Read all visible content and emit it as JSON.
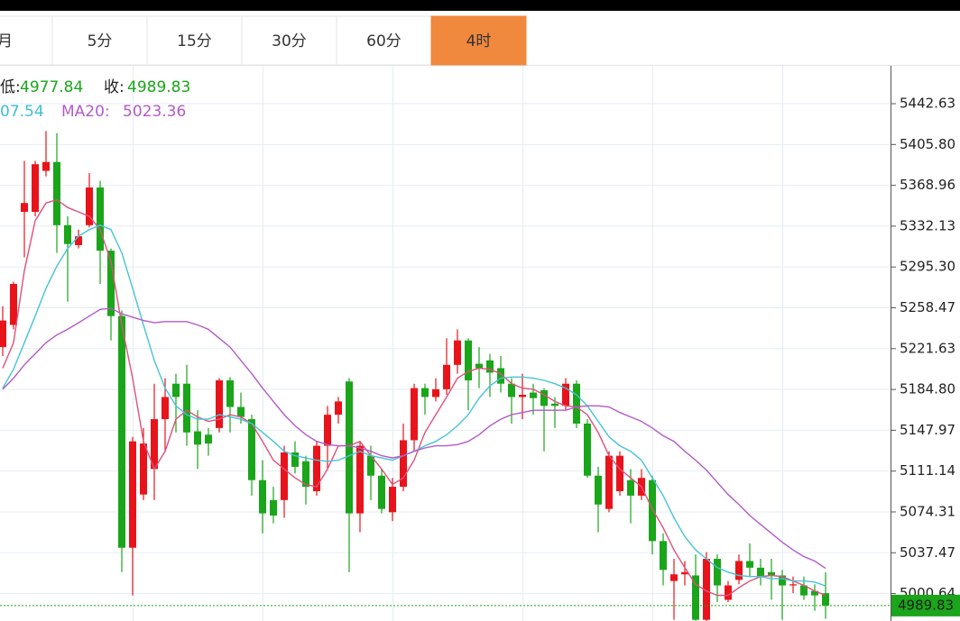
{
  "tabs": [
    "月",
    "5分",
    "15分",
    "30分",
    "60分",
    "4时"
  ],
  "active_tab": 5,
  "header": {
    "low_label": "低:",
    "low": 4977.84,
    "close_label": "收:",
    "close": 4989.83,
    "ma10_value": "07.54",
    "ma20_label": "MA20:",
    "ma20_value": 5023.36
  },
  "chart_data": {
    "type": "candlestick",
    "up_color": "#e8141b",
    "down_color": "#1aa51a",
    "ylim": [
      4975.9,
      5476.8
    ],
    "yticks": [
      5442.63,
      {
        "value": 5405.8,
        "label": "5405.80"
      },
      5368.96,
      5332.13,
      {
        "value": 5295.3,
        "label": "5295.30"
      },
      5258.47,
      5221.63,
      {
        "value": 5184.8,
        "label": "5184.80"
      },
      5147.97,
      5111.14,
      5074.31,
      5037.47,
      5000.64
    ],
    "grid": true,
    "candles": [
      {
        "open": 5223,
        "high": 5260,
        "low": 5215,
        "close": 5247
      },
      {
        "open": 5243,
        "high": 5282,
        "low": 5239,
        "close": 5280
      },
      {
        "open": 5345,
        "high": 5391,
        "low": 5304,
        "close": 5353
      },
      {
        "open": 5345,
        "high": 5391,
        "low": 5341,
        "close": 5388
      },
      {
        "open": 5382,
        "high": 5418,
        "low": 5377,
        "close": 5390
      },
      {
        "open": 5390,
        "high": 5416,
        "low": 5308,
        "close": 5333
      },
      {
        "open": 5333,
        "high": 5341,
        "low": 5264,
        "close": 5316
      },
      {
        "open": 5315,
        "high": 5329,
        "low": 5312,
        "close": 5323
      },
      {
        "open": 5333,
        "high": 5380,
        "low": 5331,
        "close": 5367
      },
      {
        "open": 5367,
        "high": 5373,
        "low": 5280,
        "close": 5310
      },
      {
        "open": 5310,
        "high": 5312,
        "low": 5229,
        "close": 5251
      },
      {
        "open": 5251,
        "high": 5256,
        "low": 5020,
        "close": 5042
      },
      {
        "open": 5042,
        "high": 5142,
        "low": 4999,
        "close": 5138
      },
      {
        "open": 5090,
        "high": 5150,
        "low": 5085,
        "close": 5136
      },
      {
        "open": 5113,
        "high": 5190,
        "low": 5085,
        "close": 5158
      },
      {
        "open": 5158,
        "high": 5195,
        "low": 5129,
        "close": 5178
      },
      {
        "open": 5190,
        "high": 5199,
        "low": 5146,
        "close": 5178
      },
      {
        "open": 5190,
        "high": 5207,
        "low": 5134,
        "close": 5146
      },
      {
        "open": 5147,
        "high": 5166,
        "low": 5113,
        "close": 5135
      },
      {
        "open": 5144,
        "high": 5150,
        "low": 5125,
        "close": 5136
      },
      {
        "open": 5150,
        "high": 5195,
        "low": 5146,
        "close": 5193
      },
      {
        "open": 5193,
        "high": 5196,
        "low": 5146,
        "close": 5169
      },
      {
        "open": 5169,
        "high": 5182,
        "low": 5154,
        "close": 5160
      },
      {
        "open": 5158,
        "high": 5162,
        "low": 5089,
        "close": 5103
      },
      {
        "open": 5103,
        "high": 5121,
        "low": 5055,
        "close": 5073
      },
      {
        "open": 5085,
        "high": 5097,
        "low": 5064,
        "close": 5071
      },
      {
        "open": 5085,
        "high": 5134,
        "low": 5069,
        "close": 5128
      },
      {
        "open": 5128,
        "high": 5138,
        "low": 5109,
        "close": 5115
      },
      {
        "open": 5120,
        "high": 5125,
        "low": 5081,
        "close": 5097
      },
      {
        "open": 5093,
        "high": 5138,
        "low": 5089,
        "close": 5134
      },
      {
        "open": 5134,
        "high": 5170,
        "low": 5113,
        "close": 5162
      },
      {
        "open": 5162,
        "high": 5178,
        "low": 5154,
        "close": 5174
      },
      {
        "open": 5192,
        "high": 5195,
        "low": 5020,
        "close": 5073
      },
      {
        "open": 5073,
        "high": 5138,
        "low": 5056,
        "close": 5134
      },
      {
        "open": 5125,
        "high": 5134,
        "low": 5085,
        "close": 5107
      },
      {
        "open": 5107,
        "high": 5113,
        "low": 5073,
        "close": 5077
      },
      {
        "open": 5074,
        "high": 5105,
        "low": 5066,
        "close": 5097
      },
      {
        "open": 5097,
        "high": 5154,
        "low": 5093,
        "close": 5139
      },
      {
        "open": 5139,
        "high": 5190,
        "low": 5129,
        "close": 5186
      },
      {
        "open": 5186,
        "high": 5190,
        "low": 5162,
        "close": 5178
      },
      {
        "open": 5178,
        "high": 5195,
        "low": 5174,
        "close": 5185
      },
      {
        "open": 5185,
        "high": 5231,
        "low": 5180,
        "close": 5207
      },
      {
        "open": 5207,
        "high": 5239,
        "low": 5199,
        "close": 5229
      },
      {
        "open": 5229,
        "high": 5231,
        "low": 5166,
        "close": 5193
      },
      {
        "open": 5208,
        "high": 5223,
        "low": 5186,
        "close": 5204
      },
      {
        "open": 5211,
        "high": 5217,
        "low": 5178,
        "close": 5200
      },
      {
        "open": 5204,
        "high": 5215,
        "low": 5182,
        "close": 5190
      },
      {
        "open": 5190,
        "high": 5195,
        "low": 5154,
        "close": 5178
      },
      {
        "open": 5178,
        "high": 5199,
        "low": 5158,
        "close": 5180
      },
      {
        "open": 5182,
        "high": 5190,
        "low": 5162,
        "close": 5177
      },
      {
        "open": 5184,
        "high": 5186,
        "low": 5129,
        "close": 5170
      },
      {
        "open": 5172,
        "high": 5178,
        "low": 5150,
        "close": 5170
      },
      {
        "open": 5170,
        "high": 5195,
        "low": 5166,
        "close": 5190
      },
      {
        "open": 5190,
        "high": 5193,
        "low": 5150,
        "close": 5154
      },
      {
        "open": 5154,
        "high": 5158,
        "low": 5105,
        "close": 5107
      },
      {
        "open": 5107,
        "high": 5115,
        "low": 5056,
        "close": 5081
      },
      {
        "open": 5077,
        "high": 5129,
        "low": 5074,
        "close": 5125
      },
      {
        "open": 5093,
        "high": 5129,
        "low": 5089,
        "close": 5125
      },
      {
        "open": 5103,
        "high": 5113,
        "low": 5064,
        "close": 5089
      },
      {
        "open": 5089,
        "high": 5113,
        "low": 5085,
        "close": 5105
      },
      {
        "open": 5103,
        "high": 5107,
        "low": 5036,
        "close": 5048
      },
      {
        "open": 5048,
        "high": 5055,
        "low": 5008,
        "close": 5022
      },
      {
        "open": 5012,
        "high": 5032,
        "low": 4977,
        "close": 5018
      },
      {
        "open": 5018,
        "high": 5030,
        "low": 5008,
        "close": 5020
      },
      {
        "open": 5017,
        "high": 5036,
        "low": 4976,
        "close": 4977
      },
      {
        "open": 4977,
        "high": 5038,
        "low": 4976,
        "close": 5032
      },
      {
        "open": 5032,
        "high": 5036,
        "low": 4993,
        "close": 5008
      },
      {
        "open": 4995,
        "high": 5012,
        "low": 4993,
        "close": 5008
      },
      {
        "open": 5013,
        "high": 5036,
        "low": 5009,
        "close": 5030
      },
      {
        "open": 5030,
        "high": 5046,
        "low": 5016,
        "close": 5024
      },
      {
        "open": 5024,
        "high": 5032,
        "low": 5008,
        "close": 5016
      },
      {
        "open": 5020,
        "high": 5032,
        "low": 4995,
        "close": 5017
      },
      {
        "open": 5017,
        "high": 5022,
        "low": 4977,
        "close": 5008
      },
      {
        "open": 5008,
        "high": 5016,
        "low": 5001,
        "close": 5009
      },
      {
        "open": 5008,
        "high": 5016,
        "low": 4995,
        "close": 4999
      },
      {
        "open": 5003,
        "high": 5009,
        "low": 4985,
        "close": 4999
      },
      {
        "open": 5001,
        "high": 5020,
        "low": 4977.84,
        "close": 4989.83
      }
    ],
    "ma_lines": [
      {
        "color": "#e0507a",
        "values": [
          5204,
          5227,
          5292,
          5337,
          5353,
          5356,
          5349,
          5345,
          5341,
          5329,
          5300,
          5243,
          5195,
          5138,
          5113,
          5129,
          5158,
          5166,
          5160,
          5156,
          5158,
          5162,
          5160,
          5154,
          5138,
          5121,
          5113,
          5105,
          5099,
          5097,
          5113,
          5134,
          5134,
          5138,
          5125,
          5113,
          5099,
          5105,
          5121,
          5146,
          5162,
          5178,
          5195,
          5201,
          5204,
          5203,
          5199,
          5190,
          5186,
          5185,
          5180,
          5174,
          5170,
          5169,
          5162,
          5146,
          5125,
          5113,
          5105,
          5097,
          5077,
          5060,
          5040,
          5024,
          5009,
          5003,
          4999,
          4999,
          5006,
          5012,
          5016,
          5017,
          5016,
          5012,
          5008,
          5003,
          4999
        ]
      },
      {
        "color": "#46c3d8",
        "values": [
          5186,
          5203,
          5227,
          5251,
          5276,
          5296,
          5312,
          5323,
          5329,
          5333,
          5329,
          5308,
          5276,
          5243,
          5211,
          5186,
          5170,
          5162,
          5158,
          5158,
          5162,
          5160,
          5158,
          5154,
          5146,
          5138,
          5129,
          5125,
          5123,
          5121,
          5120,
          5121,
          5125,
          5129,
          5125,
          5123,
          5121,
          5125,
          5129,
          5134,
          5138,
          5144,
          5152,
          5162,
          5177,
          5188,
          5195,
          5196,
          5196,
          5195,
          5193,
          5190,
          5186,
          5180,
          5170,
          5156,
          5142,
          5134,
          5129,
          5121,
          5105,
          5089,
          5069,
          5052,
          5040,
          5032,
          5024,
          5020,
          5017,
          5016,
          5016,
          5014,
          5014,
          5012,
          5012,
          5011,
          5007.54
        ]
      },
      {
        "color": "#b45ac8",
        "values": [
          5185,
          5195,
          5207,
          5217,
          5227,
          5234,
          5239,
          5245,
          5251,
          5257,
          5258,
          5253,
          5250,
          5247,
          5245,
          5246,
          5246,
          5246,
          5243,
          5239,
          5231,
          5223,
          5211,
          5199,
          5186,
          5174,
          5162,
          5152,
          5144,
          5138,
          5135,
          5134,
          5134,
          5132,
          5129,
          5125,
          5123,
          5125,
          5129,
          5132,
          5134,
          5134,
          5135,
          5138,
          5144,
          5152,
          5158,
          5162,
          5164,
          5166,
          5166,
          5166,
          5166,
          5169,
          5170,
          5170,
          5169,
          5164,
          5160,
          5156,
          5150,
          5143,
          5138,
          5129,
          5121,
          5112,
          5101,
          5090,
          5081,
          5071,
          5063,
          5055,
          5047,
          5040,
          5034,
          5030,
          5023.36
        ]
      }
    ]
  }
}
